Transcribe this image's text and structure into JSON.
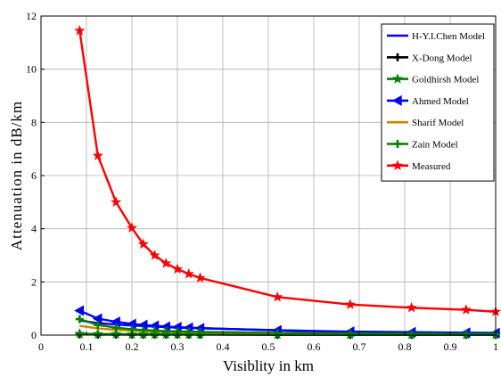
{
  "chart_data": {
    "type": "line",
    "title": "",
    "xlabel": "Visiblity in km",
    "ylabel": "Attenuation in dB/km",
    "xlim": [
      0,
      1
    ],
    "ylim": [
      0,
      12
    ],
    "xticks": [
      "0",
      "0.1",
      "0.2",
      "0.3",
      "0.4",
      "0.5",
      "0.6",
      "0.7",
      "0.8",
      "0.9",
      "1"
    ],
    "xtick_values": [
      0,
      0.1,
      0.2,
      0.3,
      0.4,
      0.5,
      0.6,
      0.7,
      0.8,
      0.9,
      1
    ],
    "yticks": [
      "0",
      "2",
      "4",
      "6",
      "8",
      "10",
      "12"
    ],
    "ytick_values": [
      0,
      2,
      4,
      6,
      8,
      10,
      12
    ],
    "grid": true,
    "legend_position": "top-right",
    "series": [
      {
        "name": "H-Y.I.Chen Model",
        "color": "#0000ff",
        "marker": "none",
        "x": [
          0.085,
          0.125,
          0.165,
          0.2,
          0.225,
          0.25,
          0.275,
          0.3,
          0.325,
          0.35,
          0.52,
          0.68,
          0.815,
          0.935,
          1.0
        ],
        "y": [
          0.55,
          0.45,
          0.4,
          0.36,
          0.34,
          0.32,
          0.3,
          0.28,
          0.27,
          0.26,
          0.18,
          0.12,
          0.1,
          0.08,
          0.08
        ]
      },
      {
        "name": "X-Dong Model",
        "color": "#000000",
        "marker": "plus",
        "x": [
          0.085,
          0.125,
          0.165,
          0.2,
          0.225,
          0.25,
          0.275,
          0.3,
          0.325,
          0.35,
          0.52,
          0.68,
          0.815,
          0.935,
          1.0
        ],
        "y": [
          0.03,
          0.02,
          0.02,
          0.02,
          0.02,
          0.02,
          0.02,
          0.02,
          0.02,
          0.02,
          0.01,
          0.01,
          0.01,
          0.01,
          0.01
        ]
      },
      {
        "name": "Goldhirsh Model",
        "color": "#008000",
        "marker": "star",
        "x": [
          0.085,
          0.125,
          0.165,
          0.2,
          0.225,
          0.25,
          0.275,
          0.3,
          0.325,
          0.35,
          0.52,
          0.68,
          0.815,
          0.935,
          1.0
        ],
        "y": [
          0.05,
          0.04,
          0.04,
          0.03,
          0.03,
          0.03,
          0.03,
          0.03,
          0.03,
          0.03,
          0.02,
          0.02,
          0.02,
          0.02,
          0.02
        ]
      },
      {
        "name": "Ahmed Model",
        "color": "#0000ff",
        "marker": "triangle-left",
        "x": [
          0.085,
          0.125,
          0.165,
          0.2,
          0.225,
          0.25,
          0.275,
          0.3,
          0.325,
          0.35,
          0.52,
          0.68,
          0.815,
          0.935,
          1.0
        ],
        "y": [
          0.92,
          0.62,
          0.5,
          0.42,
          0.38,
          0.35,
          0.32,
          0.3,
          0.28,
          0.26,
          0.18,
          0.13,
          0.11,
          0.09,
          0.08
        ]
      },
      {
        "name": "Sharif Model",
        "color": "#cc8400",
        "marker": "none",
        "x": [
          0.085,
          0.125,
          0.165,
          0.2,
          0.225,
          0.25,
          0.275,
          0.3,
          0.325,
          0.35,
          0.52,
          0.68,
          0.815,
          0.935,
          1.0
        ],
        "y": [
          0.35,
          0.25,
          0.2,
          0.17,
          0.15,
          0.14,
          0.13,
          0.12,
          0.11,
          0.1,
          0.07,
          0.05,
          0.04,
          0.04,
          0.03
        ]
      },
      {
        "name": "Zain Model",
        "color": "#008000",
        "marker": "plus",
        "x": [
          0.085,
          0.125,
          0.165,
          0.2,
          0.225,
          0.25,
          0.275,
          0.3,
          0.325,
          0.35,
          0.52,
          0.68,
          0.815,
          0.935,
          1.0
        ],
        "y": [
          0.6,
          0.38,
          0.28,
          0.22,
          0.19,
          0.17,
          0.15,
          0.14,
          0.13,
          0.12,
          0.08,
          0.06,
          0.05,
          0.04,
          0.04
        ]
      },
      {
        "name": "Measured",
        "color": "#ff0000",
        "marker": "star",
        "x": [
          0.085,
          0.125,
          0.165,
          0.2,
          0.225,
          0.25,
          0.275,
          0.3,
          0.325,
          0.35,
          0.52,
          0.68,
          0.815,
          0.935,
          1.0
        ],
        "y": [
          11.45,
          6.75,
          5.0,
          4.03,
          3.42,
          3.0,
          2.7,
          2.48,
          2.3,
          2.15,
          1.43,
          1.15,
          1.03,
          0.95,
          0.88
        ]
      }
    ]
  }
}
